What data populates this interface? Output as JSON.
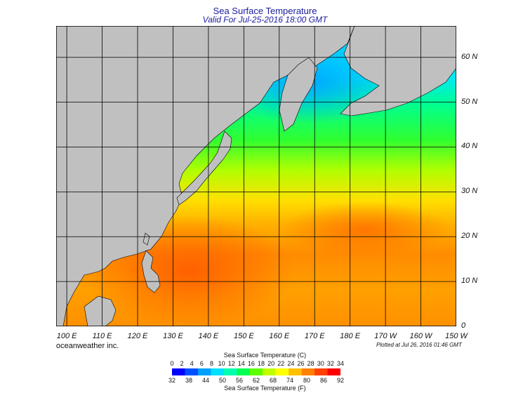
{
  "header": {
    "title": "Sea Surface Temperature",
    "subtitle": "Valid For Jul-25-2016 18:00 GMT"
  },
  "map": {
    "lat_labels": [
      "60 N",
      "50 N",
      "40 N",
      "30 N",
      "20 N",
      "10 N",
      "0"
    ],
    "lat_values": [
      60,
      50,
      40,
      30,
      20,
      10,
      0
    ],
    "lon_labels": [
      "100 E",
      "110 E",
      "120 E",
      "130 E",
      "140 E",
      "150 E",
      "160 E",
      "170 E",
      "180 E",
      "170 W",
      "160 W",
      "150 W"
    ],
    "lon_values": [
      100,
      110,
      120,
      130,
      140,
      150,
      160,
      170,
      180,
      190,
      200,
      210
    ],
    "lat_range": [
      0,
      67
    ],
    "lon_range": [
      97,
      210
    ],
    "colors": {
      "land": "#c0c0c0",
      "grid": "#000000"
    }
  },
  "footer": {
    "credit": "oceanweather inc.",
    "plotted": "Plotted at Jul 26, 2016 01:46 GMT"
  },
  "legend": {
    "celsius_title": "Sea Surface Temperature (C)",
    "fahrenheit_title": "Sea Surface Temperature (F)",
    "celsius_ticks": [
      "0",
      "2",
      "4",
      "6",
      "8",
      "10",
      "12",
      "14",
      "16",
      "18",
      "20",
      "22",
      "24",
      "26",
      "28",
      "30",
      "32",
      "34"
    ],
    "fahrenheit_ticks": [
      "32",
      "38",
      "44",
      "50",
      "56",
      "62",
      "68",
      "74",
      "80",
      "86",
      "92"
    ],
    "celsius_values": [
      0,
      2,
      4,
      6,
      8,
      10,
      12,
      14,
      16,
      18,
      20,
      22,
      24,
      26,
      28,
      30,
      32,
      34
    ],
    "fahrenheit_values": [
      32,
      38,
      44,
      50,
      56,
      62,
      68,
      74,
      80,
      86,
      92
    ],
    "colors": [
      "#0000ff",
      "#0050ff",
      "#00a0ff",
      "#00e0ff",
      "#00ffb0",
      "#00ff50",
      "#60ff00",
      "#c0ff00",
      "#ffff00",
      "#ffc000",
      "#ff8000",
      "#ff4000",
      "#ff0000"
    ]
  }
}
